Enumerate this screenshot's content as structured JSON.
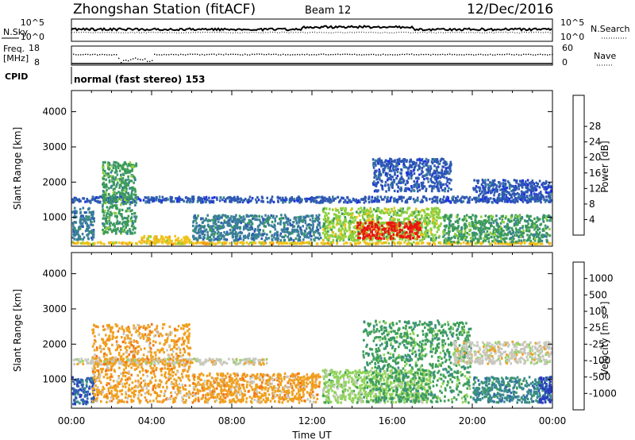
{
  "header": {
    "station": "Zhongshan Station (fitACF)",
    "beam": "Beam 12",
    "date": "12/Dec/2016"
  },
  "strips": {
    "nsky_label": "N.Sky",
    "nsky_ticks": [
      "10^5",
      "10^0"
    ],
    "nsearch_label": "N.Search",
    "nsearch_ticks": [
      "10^5",
      "10^0"
    ],
    "freq_label_line1": "Freq.",
    "freq_label_line2": "[MHz]",
    "freq_ticks": [
      "18",
      "8"
    ],
    "nave_label": "Nave",
    "nave_ticks": [
      "60",
      "0"
    ],
    "cpid_label": "CPID",
    "cpid_text": "normal (fast stereo) 153"
  },
  "chart_data": [
    {
      "type": "heatmap",
      "title": "Power",
      "ylabel": "Slant Range [km]",
      "xlabel": "Time UT",
      "x_range_hours": [
        0,
        24
      ],
      "ylim": [
        180,
        4600
      ],
      "yticks": [
        1000,
        2000,
        3000,
        4000
      ],
      "xticks": [
        "00:00",
        "04:00",
        "08:00",
        "12:00",
        "16:00",
        "20:00",
        "00:00"
      ],
      "colorbar": {
        "label": "Power [dB]",
        "ticks": [
          "4",
          "8",
          "12",
          "16",
          "20",
          "24",
          "28"
        ],
        "colors": [
          "#1f2fe6",
          "#2e58b4",
          "#3a7f9a",
          "#3b9a5c",
          "#8ccf3c",
          "#f0c21a",
          "#f39a16",
          "#f26a12",
          "#e8160e"
        ]
      },
      "regions": [
        {
          "start_hour": 0.0,
          "end_hour": 24.0,
          "range_min": 200,
          "range_max": 330,
          "level": 5
        },
        {
          "start_hour": 0.0,
          "end_hour": 1.2,
          "range_min": 330,
          "range_max": 1300,
          "level": 2
        },
        {
          "start_hour": 0.0,
          "end_hour": 24.0,
          "range_min": 1380,
          "range_max": 1620,
          "level": 1
        },
        {
          "start_hour": 1.5,
          "end_hour": 3.3,
          "range_min": 500,
          "range_max": 2600,
          "level": 3
        },
        {
          "start_hour": 3.3,
          "end_hour": 6.0,
          "range_min": 250,
          "range_max": 500,
          "level": 5
        },
        {
          "start_hour": 6.0,
          "end_hour": 12.5,
          "range_min": 300,
          "range_max": 1100,
          "level": 2
        },
        {
          "start_hour": 12.5,
          "end_hour": 18.5,
          "range_min": 300,
          "range_max": 1300,
          "level": 4
        },
        {
          "start_hour": 14.2,
          "end_hour": 17.5,
          "range_min": 350,
          "range_max": 900,
          "level": 8
        },
        {
          "start_hour": 18.5,
          "end_hour": 24.0,
          "range_min": 250,
          "range_max": 1100,
          "level": 3
        },
        {
          "start_hour": 15.0,
          "end_hour": 19.0,
          "range_min": 1700,
          "range_max": 2700,
          "level": 1
        },
        {
          "start_hour": 20.0,
          "end_hour": 24.0,
          "range_min": 1400,
          "range_max": 2100,
          "level": 1
        }
      ]
    },
    {
      "type": "heatmap",
      "title": "Velocity",
      "ylabel": "Slant Range [km]",
      "xlabel": "Time UT",
      "x_range_hours": [
        0,
        24
      ],
      "ylim": [
        180,
        4600
      ],
      "yticks": [
        1000,
        2000,
        3000,
        4000
      ],
      "xticks": [
        "00:00",
        "04:00",
        "08:00",
        "12:00",
        "16:00",
        "20:00",
        "00:00"
      ],
      "colorbar": {
        "label": "Velocity [m s⁻¹]",
        "ticks": [
          "1000",
          "500",
          "100",
          "25",
          "-25",
          "-100",
          "-500",
          "-1000"
        ],
        "colors": [
          "#2a3bbf",
          "#2f63b0",
          "#3a8a8c",
          "#3e9e5a",
          "#8fd45a",
          "#c8c8c0",
          "#f0a020",
          "#f27416",
          "#e62a10"
        ]
      },
      "regions": [
        {
          "start_hour": 0.0,
          "end_hour": 1.2,
          "range_min": 250,
          "range_max": 1100,
          "level": 1
        },
        {
          "start_hour": 0.0,
          "end_hour": 10.0,
          "range_min": 1380,
          "range_max": 1620,
          "level": 5
        },
        {
          "start_hour": 1.0,
          "end_hour": 6.0,
          "range_min": 300,
          "range_max": 2600,
          "level": 6
        },
        {
          "start_hour": 6.0,
          "end_hour": 12.5,
          "range_min": 300,
          "range_max": 1200,
          "level": 6
        },
        {
          "start_hour": 12.5,
          "end_hour": 18.0,
          "range_min": 300,
          "range_max": 1300,
          "level": 4
        },
        {
          "start_hour": 14.5,
          "end_hour": 20.0,
          "range_min": 300,
          "range_max": 2700,
          "level": 3
        },
        {
          "start_hour": 20.0,
          "end_hour": 24.0,
          "range_min": 300,
          "range_max": 1100,
          "level": 2
        },
        {
          "start_hour": 19.0,
          "end_hour": 24.0,
          "range_min": 1400,
          "range_max": 2100,
          "level": 5
        },
        {
          "start_hour": 23.3,
          "end_hour": 24.0,
          "range_min": 300,
          "range_max": 1100,
          "level": 0
        }
      ]
    }
  ]
}
